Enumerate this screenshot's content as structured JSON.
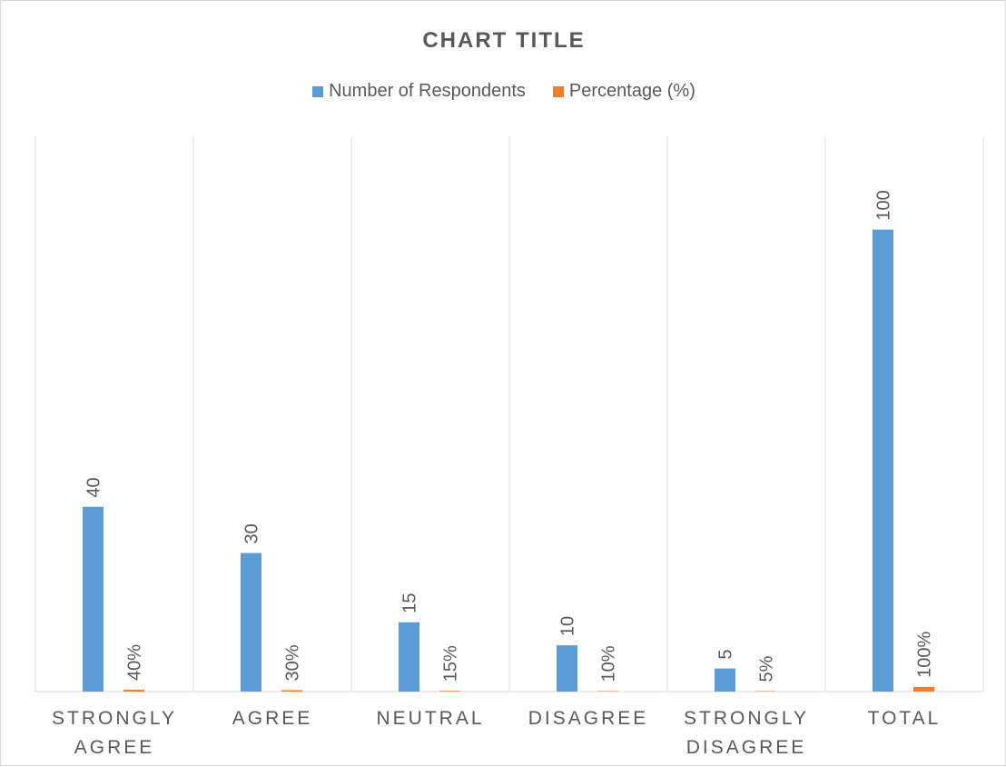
{
  "chart_data": {
    "type": "bar",
    "title": "CHART TITLE",
    "xlabel": "",
    "ylabel": "",
    "categories": [
      [
        "STRONGLY",
        "AGREE"
      ],
      [
        "AGREE"
      ],
      [
        "NEUTRAL"
      ],
      [
        "DISAGREE"
      ],
      [
        "STRONGLY",
        "DISAGREE"
      ],
      [
        "TOTAL"
      ]
    ],
    "series": [
      {
        "name": "Number of Respondents",
        "color": "#5b9bd5",
        "values": [
          40,
          30,
          15,
          10,
          5,
          100
        ],
        "labels": [
          "40",
          "30",
          "15",
          "10",
          "5",
          "100"
        ]
      },
      {
        "name": "Percentage (%)",
        "color": "#ed7d31",
        "values": [
          0.4,
          0.3,
          0.15,
          0.1,
          0.05,
          1.0
        ],
        "labels": [
          "40%",
          "30%",
          "15%",
          "10%",
          "5%",
          "100%"
        ]
      }
    ],
    "ylim": [
      0,
      120
    ],
    "grid": "vertical category separators",
    "legend_position": "top"
  }
}
